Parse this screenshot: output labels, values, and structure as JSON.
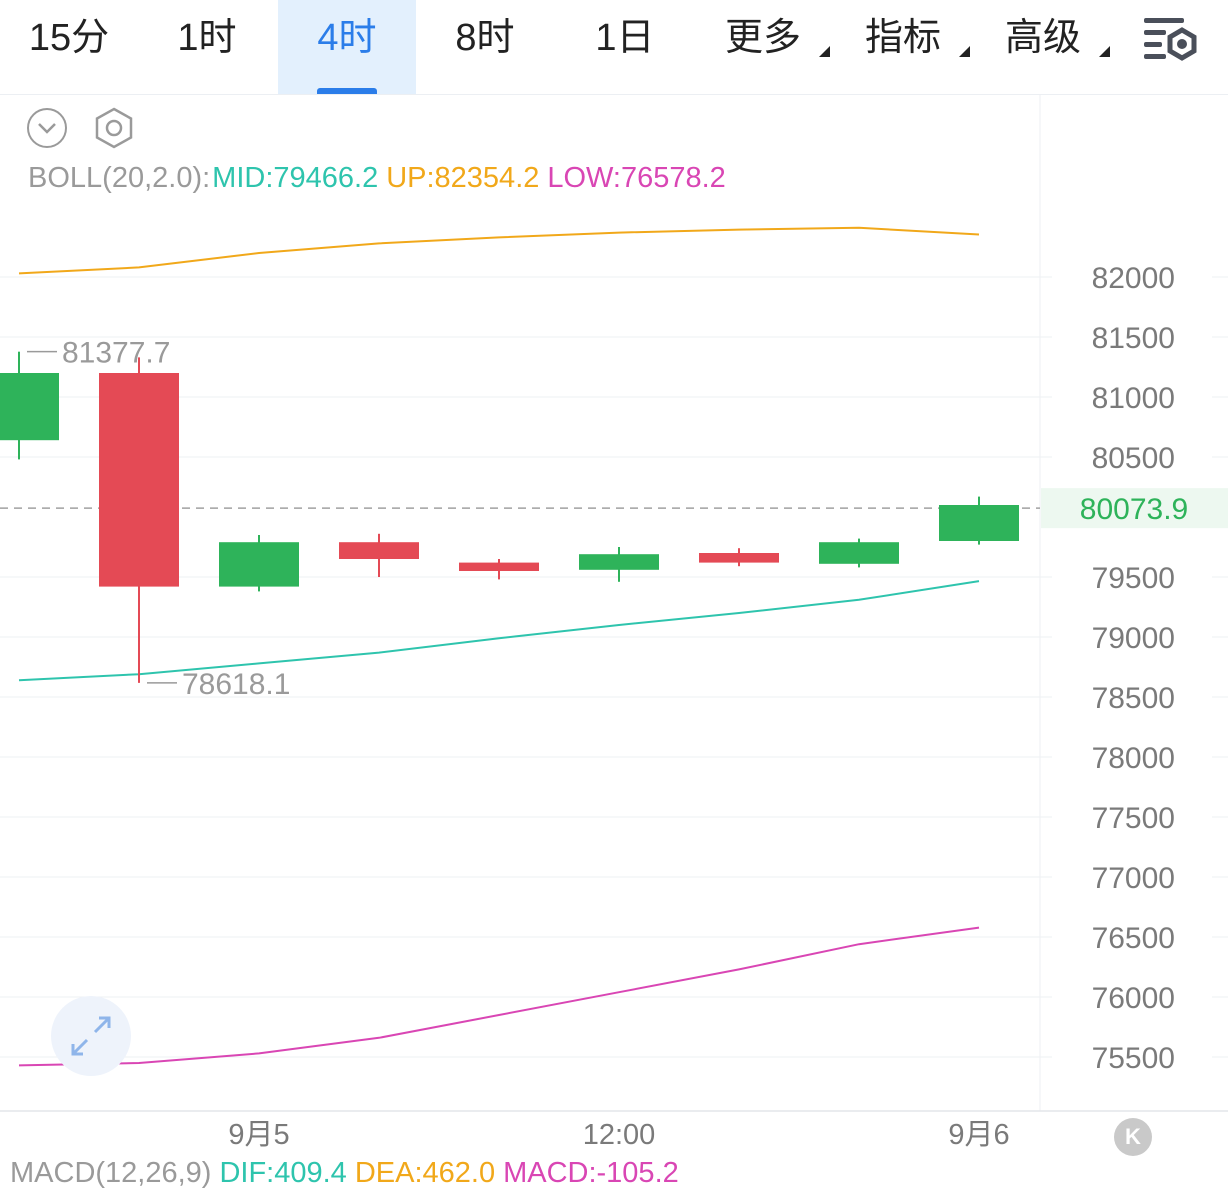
{
  "tabs": [
    {
      "label": "15分"
    },
    {
      "label": "1时"
    },
    {
      "label": "4时",
      "active": true
    },
    {
      "label": "8时"
    },
    {
      "label": "1日"
    },
    {
      "label": "更多",
      "dropdown": true
    },
    {
      "label": "指标",
      "dropdown": true
    },
    {
      "label": "高级",
      "dropdown": true
    }
  ],
  "icons": {
    "collapse": "chevron-down-icon",
    "settings": "hexagon-gear-icon",
    "toolbar_settings": "list-gear-icon",
    "expand": "expand-arrows-icon",
    "scroll_latest": "k-icon"
  },
  "colors": {
    "up": "#2eb35a",
    "down": "#e44a55",
    "mid": "#2ec4ad",
    "upper": "#f1a81a",
    "lower": "#d946b4",
    "accent": "#2b7de9",
    "muted": "#9a9a9a"
  },
  "boll_legend": {
    "name": "BOLL(20,2.0):",
    "mid": "MID:79466.2",
    "up": "UP:82354.2",
    "low": "LOW:76578.2"
  },
  "macd_legend": {
    "name": "MACD(12,26,9)",
    "dif": "DIF:409.4",
    "dea": "DEA:462.0",
    "macd": "MACD:-105.2"
  },
  "k_button": "K",
  "chart_data": {
    "type": "candlestick",
    "ylim": [
      75200,
      82800
    ],
    "y_ticks": [
      82000,
      81500,
      81000,
      80500,
      79500,
      79000,
      78500,
      78000,
      77500,
      77000,
      76500,
      76000,
      75500
    ],
    "x_labels": [
      {
        "label": "9月5",
        "index": 2
      },
      {
        "label": "12:00",
        "index": 5
      },
      {
        "label": "9月6",
        "index": 8
      }
    ],
    "candles": [
      {
        "open": 80640,
        "high": 81377.7,
        "close": 81200,
        "low": 80480
      },
      {
        "open": 81200,
        "high": 81330,
        "close": 79420,
        "low": 78618.1
      },
      {
        "open": 79420,
        "high": 79850,
        "close": 79790,
        "low": 79380
      },
      {
        "open": 79790,
        "high": 79860,
        "close": 79650,
        "low": 79500
      },
      {
        "open": 79620,
        "high": 79650,
        "close": 79550,
        "low": 79480
      },
      {
        "open": 79560,
        "high": 79750,
        "close": 79690,
        "low": 79460
      },
      {
        "open": 79700,
        "high": 79740,
        "close": 79620,
        "low": 79590
      },
      {
        "open": 79610,
        "high": 79820,
        "close": 79790,
        "low": 79580
      },
      {
        "open": 79800,
        "high": 80170,
        "close": 80100,
        "low": 79770
      }
    ],
    "boll_upper": [
      82030,
      82080,
      82200,
      82280,
      82330,
      82370,
      82395,
      82410,
      82354.2
    ],
    "boll_mid": [
      78640,
      78690,
      78780,
      78870,
      78990,
      79100,
      79200,
      79310,
      79466.2
    ],
    "boll_lower": [
      75430,
      75450,
      75530,
      75660,
      75850,
      76040,
      76230,
      76440,
      76578.2
    ],
    "current_price": 80073.9,
    "annotations": [
      {
        "text": "81377.7",
        "index": 0
      },
      {
        "text": "78618.1",
        "index": 1
      }
    ]
  }
}
